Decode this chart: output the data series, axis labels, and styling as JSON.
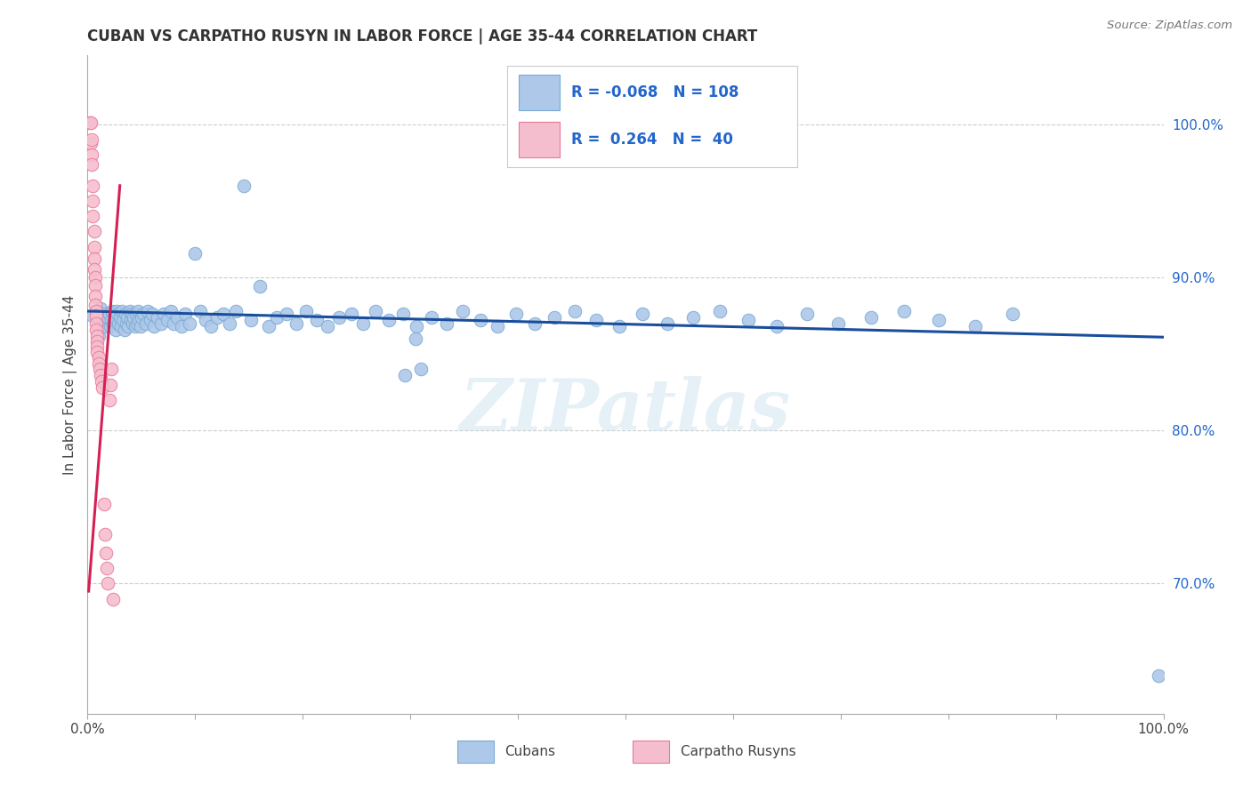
{
  "title": "CUBAN VS CARPATHO RUSYN IN LABOR FORCE | AGE 35-44 CORRELATION CHART",
  "source": "Source: ZipAtlas.com",
  "ylabel": "In Labor Force | Age 35-44",
  "xlim": [
    0.0,
    1.0
  ],
  "ylim": [
    0.615,
    1.045
  ],
  "yticks_right": [
    0.7,
    0.8,
    0.9,
    1.0
  ],
  "yticklabels_right": [
    "70.0%",
    "80.0%",
    "90.0%",
    "100.0%"
  ],
  "blue_color": "#adc8e8",
  "blue_edge": "#7aaad4",
  "pink_color": "#f5bece",
  "pink_edge": "#e87898",
  "trendline_blue": "#1a4e9c",
  "trendline_pink": "#d42055",
  "legend_R_blue": "-0.068",
  "legend_N_blue": "108",
  "legend_R_pink": "0.264",
  "legend_N_pink": "40",
  "legend_label_blue": "Cubans",
  "legend_label_pink": "Carpatho Rusyns",
  "watermark": "ZIPatlas",
  "blue_trendline_x0": 0.0,
  "blue_trendline_y0": 0.878,
  "blue_trendline_x1": 1.0,
  "blue_trendline_y1": 0.861,
  "pink_trendline_x0": 0.001,
  "pink_trendline_y0": 0.695,
  "pink_trendline_x1": 0.03,
  "pink_trendline_y1": 0.96,
  "blue_x": [
    0.005,
    0.01,
    0.012,
    0.015,
    0.016,
    0.017,
    0.018,
    0.019,
    0.02,
    0.021,
    0.022,
    0.023,
    0.024,
    0.025,
    0.026,
    0.027,
    0.028,
    0.029,
    0.03,
    0.031,
    0.032,
    0.033,
    0.034,
    0.035,
    0.036,
    0.037,
    0.038,
    0.039,
    0.04,
    0.041,
    0.042,
    0.043,
    0.044,
    0.045,
    0.046,
    0.047,
    0.048,
    0.049,
    0.05,
    0.052,
    0.054,
    0.056,
    0.058,
    0.06,
    0.062,
    0.065,
    0.068,
    0.071,
    0.074,
    0.077,
    0.08,
    0.083,
    0.087,
    0.091,
    0.095,
    0.1,
    0.105,
    0.11,
    0.115,
    0.12,
    0.126,
    0.132,
    0.138,
    0.145,
    0.152,
    0.16,
    0.168,
    0.176,
    0.185,
    0.194,
    0.203,
    0.213,
    0.223,
    0.234,
    0.245,
    0.256,
    0.268,
    0.28,
    0.293,
    0.306,
    0.32,
    0.334,
    0.349,
    0.365,
    0.381,
    0.398,
    0.416,
    0.434,
    0.453,
    0.473,
    0.494,
    0.516,
    0.539,
    0.563,
    0.588,
    0.614,
    0.641,
    0.669,
    0.698,
    0.728,
    0.759,
    0.791,
    0.825,
    0.86,
    0.295,
    0.305,
    0.31,
    0.995
  ],
  "blue_y": [
    0.875,
    0.862,
    0.88,
    0.87,
    0.876,
    0.868,
    0.872,
    0.874,
    0.876,
    0.868,
    0.872,
    0.878,
    0.87,
    0.874,
    0.866,
    0.878,
    0.876,
    0.87,
    0.874,
    0.868,
    0.878,
    0.872,
    0.866,
    0.876,
    0.87,
    0.874,
    0.868,
    0.878,
    0.872,
    0.876,
    0.87,
    0.874,
    0.868,
    0.876,
    0.87,
    0.878,
    0.872,
    0.868,
    0.874,
    0.876,
    0.87,
    0.878,
    0.872,
    0.876,
    0.868,
    0.874,
    0.87,
    0.876,
    0.872,
    0.878,
    0.87,
    0.874,
    0.868,
    0.876,
    0.87,
    0.916,
    0.878,
    0.872,
    0.868,
    0.874,
    0.876,
    0.87,
    0.878,
    0.96,
    0.872,
    0.894,
    0.868,
    0.874,
    0.876,
    0.87,
    0.878,
    0.872,
    0.868,
    0.874,
    0.876,
    0.87,
    0.878,
    0.872,
    0.876,
    0.868,
    0.874,
    0.87,
    0.878,
    0.872,
    0.868,
    0.876,
    0.87,
    0.874,
    0.878,
    0.872,
    0.868,
    0.876,
    0.87,
    0.874,
    0.878,
    0.872,
    0.868,
    0.876,
    0.87,
    0.874,
    0.878,
    0.872,
    0.868,
    0.876,
    0.836,
    0.86,
    0.84,
    0.64
  ],
  "pink_x": [
    0.002,
    0.003,
    0.003,
    0.004,
    0.004,
    0.004,
    0.005,
    0.005,
    0.005,
    0.006,
    0.006,
    0.006,
    0.006,
    0.007,
    0.007,
    0.007,
    0.007,
    0.008,
    0.008,
    0.008,
    0.008,
    0.009,
    0.009,
    0.009,
    0.009,
    0.01,
    0.01,
    0.011,
    0.012,
    0.013,
    0.014,
    0.015,
    0.016,
    0.017,
    0.018,
    0.019,
    0.02,
    0.021,
    0.022,
    0.024
  ],
  "pink_y": [
    1.001,
    1.001,
    0.988,
    0.99,
    0.98,
    0.974,
    0.96,
    0.95,
    0.94,
    0.93,
    0.92,
    0.912,
    0.905,
    0.9,
    0.895,
    0.888,
    0.882,
    0.878,
    0.875,
    0.87,
    0.866,
    0.862,
    0.858,
    0.855,
    0.851,
    0.848,
    0.844,
    0.84,
    0.836,
    0.832,
    0.828,
    0.752,
    0.732,
    0.72,
    0.71,
    0.7,
    0.82,
    0.83,
    0.84,
    0.69
  ]
}
